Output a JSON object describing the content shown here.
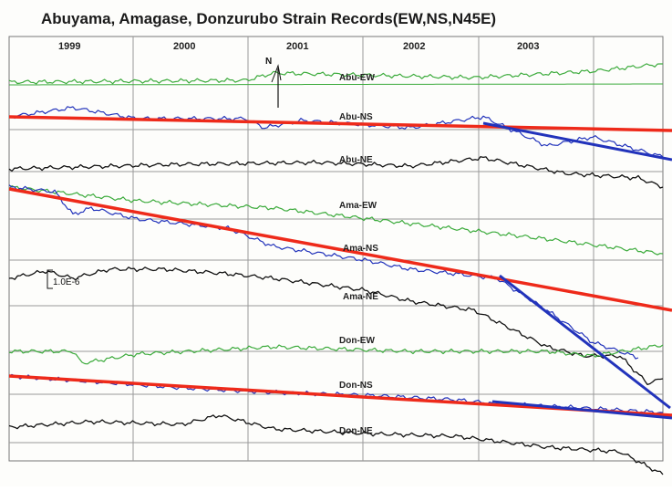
{
  "header": {
    "title": "Abuyama, Amagase, Donzurubo Strain Records(EW,NS,N45E)"
  },
  "years": [
    "1999",
    "2000",
    "2001",
    "2002",
    "2003"
  ],
  "trace_labels": [
    "Abu-EW",
    "Abu-NS",
    "Abu-NE",
    "Ama-EW",
    "Ama-NS",
    "Ama-NE",
    "Don-EW",
    "Don-NS",
    "Don-NE"
  ],
  "scale_label": "1.0E-6",
  "north_label": "N"
}
